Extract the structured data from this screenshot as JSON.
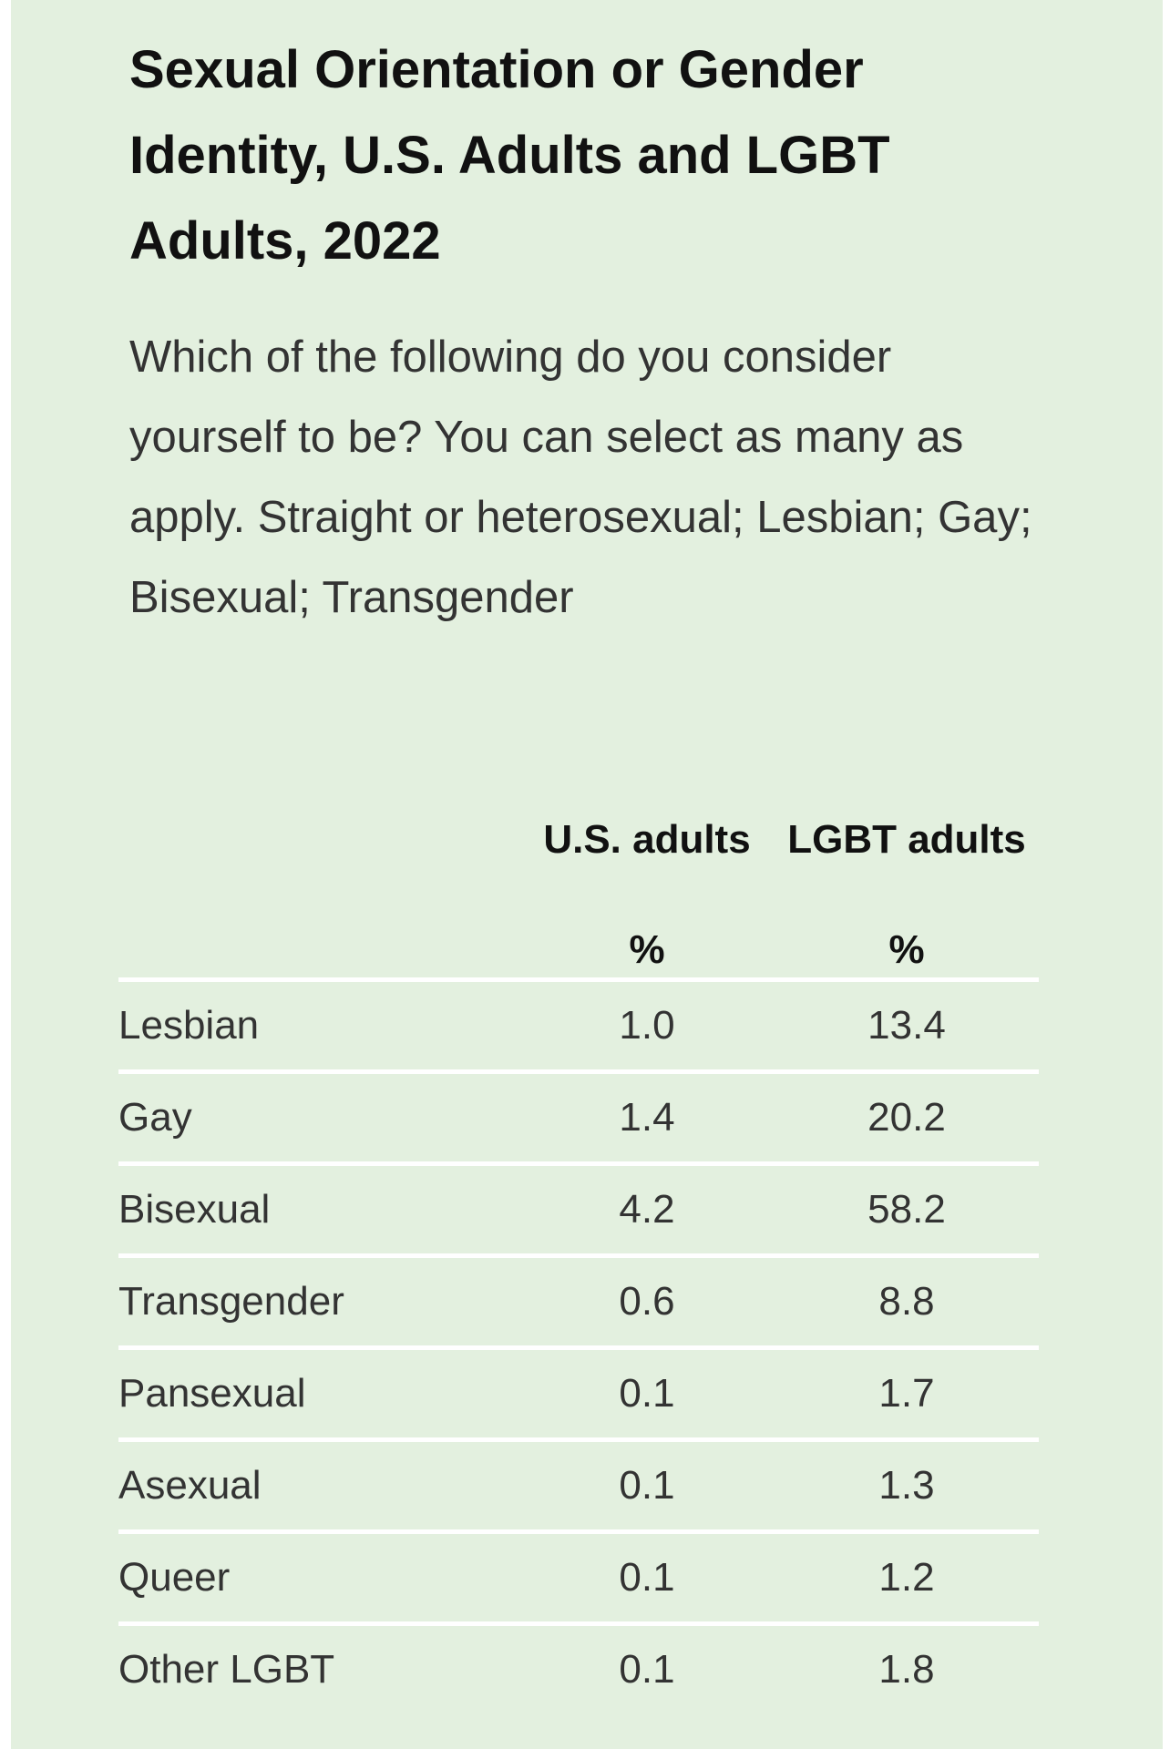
{
  "title": "Sexual Orientation or Gender Identity, U.S. Adults and LGBT Adults, 2022",
  "subtitle": "Which of the following do you consider yourself to be? You can select as many as apply. Straight or heterosexual; Lesbian; Gay; Bisexual; Transgender",
  "colors": {
    "background": "#e3f0df",
    "divider": "#ffffff",
    "title_text": "#111111",
    "body_text": "#333333"
  },
  "chart_data": {
    "type": "table",
    "title": "Sexual Orientation or Gender Identity, U.S. Adults and LGBT Adults, 2022",
    "columns": [
      {
        "name": "U.S. adults",
        "unit": "%"
      },
      {
        "name": "LGBT adults",
        "unit": "%"
      }
    ],
    "rows": [
      {
        "label": "Lesbian",
        "us": "1.0",
        "lgbt": "13.4"
      },
      {
        "label": "Gay",
        "us": "1.4",
        "lgbt": "20.2"
      },
      {
        "label": "Bisexual",
        "us": "4.2",
        "lgbt": "58.2"
      },
      {
        "label": "Transgender",
        "us": "0.6",
        "lgbt": "8.8"
      },
      {
        "label": "Pansexual",
        "us": "0.1",
        "lgbt": "1.7"
      },
      {
        "label": "Asexual",
        "us": "0.1",
        "lgbt": "1.3"
      },
      {
        "label": "Queer",
        "us": "0.1",
        "lgbt": "1.2"
      },
      {
        "label": "Other LGBT",
        "us": "0.1",
        "lgbt": "1.8"
      }
    ]
  }
}
